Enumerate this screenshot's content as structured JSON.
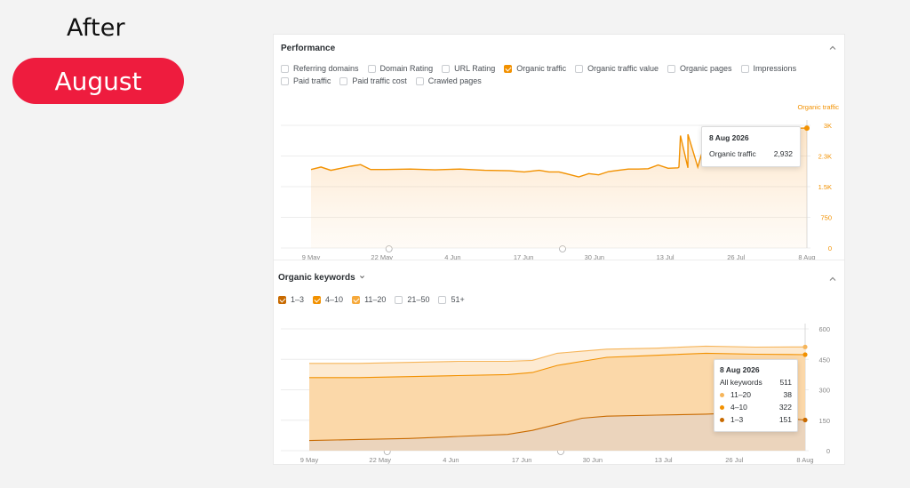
{
  "overlay": {
    "after_label": "After",
    "month_pill": "August"
  },
  "performance": {
    "title": "Performance",
    "metrics": [
      {
        "label": "Referring domains",
        "checked": false
      },
      {
        "label": "Domain Rating",
        "checked": false
      },
      {
        "label": "URL Rating",
        "checked": false
      },
      {
        "label": "Organic traffic",
        "checked": true
      },
      {
        "label": "Organic traffic value",
        "checked": false
      },
      {
        "label": "Organic pages",
        "checked": false
      },
      {
        "label": "Impressions",
        "checked": false
      },
      {
        "label": "Paid traffic",
        "checked": false
      },
      {
        "label": "Paid traffic cost",
        "checked": false
      },
      {
        "label": "Crawled pages",
        "checked": false
      }
    ],
    "tooltip": {
      "date": "8 Aug 2026",
      "metric": "Organic traffic",
      "value": "2,932"
    }
  },
  "organic_keywords": {
    "title": "Organic keywords",
    "filters": [
      {
        "label": "1–3",
        "checked": true,
        "tone": "dark"
      },
      {
        "label": "4–10",
        "checked": true,
        "tone": "mid"
      },
      {
        "label": "11–20",
        "checked": true,
        "tone": "light"
      },
      {
        "label": "21–50",
        "checked": false,
        "tone": "none"
      },
      {
        "label": "51+",
        "checked": false,
        "tone": "none"
      }
    ],
    "tooltip": {
      "date": "8 Aug 2026",
      "total_label": "All keywords",
      "total_value": "511",
      "rows": [
        {
          "label": "11–20",
          "value": "38",
          "color": "#f6b55a"
        },
        {
          "label": "4–10",
          "value": "322",
          "color": "#f29100"
        },
        {
          "label": "1–3",
          "value": "151",
          "color": "#c86a00"
        }
      ]
    }
  },
  "chart_data": [
    {
      "type": "area",
      "series": [
        {
          "name": "Organic traffic",
          "color": "#f29100"
        }
      ],
      "x_labels": [
        "9 May",
        "22 May",
        "4 Jun",
        "17 Jun",
        "30 Jun",
        "13 Jul",
        "26 Jul",
        "8 Aug"
      ],
      "y_ticks": [
        "0",
        "750",
        "1.5K",
        "2.3K",
        "3K"
      ],
      "ylim": [
        0,
        3000
      ],
      "points": [
        [
          0,
          1920
        ],
        [
          0.02,
          1980
        ],
        [
          0.04,
          1900
        ],
        [
          0.06,
          1950
        ],
        [
          0.08,
          2000
        ],
        [
          0.1,
          2040
        ],
        [
          0.12,
          1920
        ],
        [
          0.15,
          1920
        ],
        [
          0.2,
          1930
        ],
        [
          0.25,
          1910
        ],
        [
          0.3,
          1930
        ],
        [
          0.35,
          1900
        ],
        [
          0.4,
          1890
        ],
        [
          0.43,
          1860
        ],
        [
          0.46,
          1900
        ],
        [
          0.48,
          1860
        ],
        [
          0.5,
          1860
        ],
        [
          0.52,
          1800
        ],
        [
          0.54,
          1740
        ],
        [
          0.56,
          1820
        ],
        [
          0.58,
          1790
        ],
        [
          0.6,
          1870
        ],
        [
          0.62,
          1900
        ],
        [
          0.64,
          1930
        ],
        [
          0.66,
          1930
        ],
        [
          0.68,
          1940
        ],
        [
          0.7,
          2030
        ],
        [
          0.72,
          1950
        ],
        [
          0.74,
          1960
        ],
        [
          0.76,
          1960
        ],
        [
          0.78,
          1980
        ],
        [
          0.7,
          2030
        ],
        [
          0.742,
          1980
        ],
        [
          0.745,
          2750
        ],
        [
          0.76,
          2780
        ],
        [
          0.8,
          2800
        ],
        [
          0.84,
          2820
        ],
        [
          0.86,
          2860
        ],
        [
          0.9,
          2870
        ],
        [
          0.94,
          2880
        ],
        [
          0.97,
          2890
        ],
        [
          0.985,
          2930
        ],
        [
          1.0,
          2932
        ]
      ],
      "milestone_x": [
        0.15,
        0.5
      ],
      "title": "Organic traffic"
    },
    {
      "type": "area",
      "stacked": true,
      "x_labels": [
        "9 May",
        "22 May",
        "4 Jun",
        "17 Jun",
        "30 Jun",
        "13 Jul",
        "26 Jul",
        "8 Aug"
      ],
      "y_ticks": [
        "0",
        "150",
        "300",
        "450",
        "600"
      ],
      "ylim": [
        0,
        600
      ],
      "series": [
        {
          "name": "1–3",
          "color": "#c86a00",
          "points": [
            [
              0,
              50
            ],
            [
              0.1,
              55
            ],
            [
              0.2,
              60
            ],
            [
              0.3,
              70
            ],
            [
              0.4,
              80
            ],
            [
              0.45,
              100
            ],
            [
              0.5,
              130
            ],
            [
              0.55,
              160
            ],
            [
              0.6,
              170
            ],
            [
              0.7,
              175
            ],
            [
              0.8,
              180
            ],
            [
              0.85,
              185
            ],
            [
              0.9,
              170
            ],
            [
              1.0,
              151
            ]
          ]
        },
        {
          "name": "4–10",
          "color": "#f29100",
          "points": [
            [
              0,
              360
            ],
            [
              0.1,
              360
            ],
            [
              0.2,
              365
            ],
            [
              0.3,
              370
            ],
            [
              0.4,
              375
            ],
            [
              0.45,
              385
            ],
            [
              0.5,
              420
            ],
            [
              0.55,
              440
            ],
            [
              0.6,
              460
            ],
            [
              0.7,
              470
            ],
            [
              0.8,
              480
            ],
            [
              0.9,
              475
            ],
            [
              1.0,
              473
            ]
          ]
        },
        {
          "name": "11–20",
          "color": "#f6b55a",
          "points": [
            [
              0,
              430
            ],
            [
              0.1,
              430
            ],
            [
              0.2,
              435
            ],
            [
              0.3,
              440
            ],
            [
              0.4,
              440
            ],
            [
              0.45,
              445
            ],
            [
              0.5,
              480
            ],
            [
              0.55,
              490
            ],
            [
              0.6,
              500
            ],
            [
              0.7,
              505
            ],
            [
              0.8,
              515
            ],
            [
              0.9,
              510
            ],
            [
              1.0,
              511
            ]
          ]
        }
      ],
      "milestone_x": [
        0.15,
        0.5
      ]
    }
  ]
}
